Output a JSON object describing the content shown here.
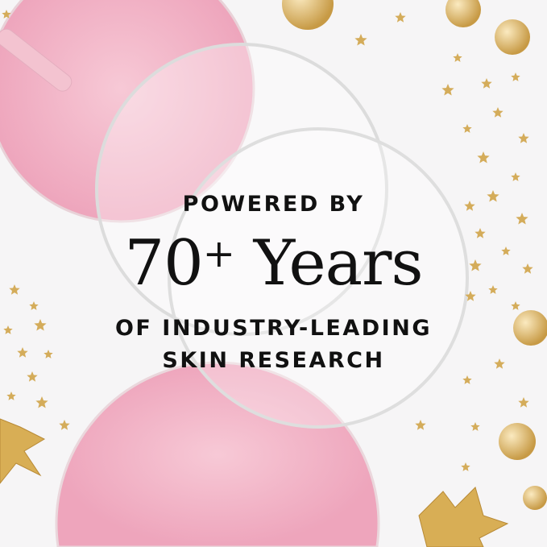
{
  "headline": {
    "line1": "POWERED BY",
    "number": "70",
    "plus": "+",
    "word": "Years",
    "line3": "OF INDUSTRY-LEADING",
    "line4": "SKIN RESEARCH"
  },
  "colors": {
    "pink": "#f1b6c8",
    "gold": "#d9b35a",
    "text": "#111111"
  }
}
